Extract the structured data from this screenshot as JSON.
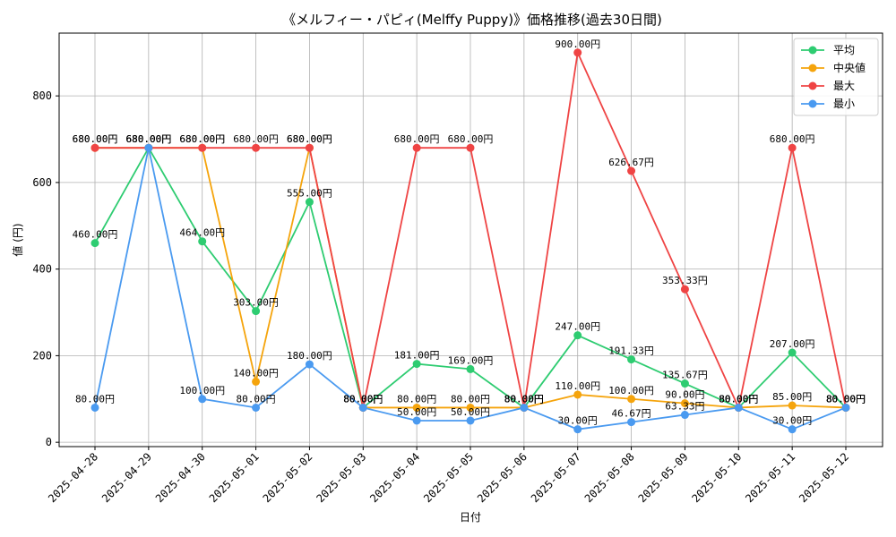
{
  "chart_data": {
    "type": "line",
    "title": "《メルフィー・パピィ(Melffy Puppy)》価格推移(過去30日間)",
    "xlabel": "日付",
    "ylabel": "値 (円)",
    "ylim": [
      -10,
      945
    ],
    "yticks": [
      0,
      200,
      400,
      600,
      800
    ],
    "grid": true,
    "legend_position": "top-right",
    "label_suffix": "円",
    "categories": [
      "2025-04-28",
      "2025-04-29",
      "2025-04-30",
      "2025-05-01",
      "2025-05-02",
      "2025-05-03",
      "2025-05-04",
      "2025-05-05",
      "2025-05-06",
      "2025-05-07",
      "2025-05-08",
      "2025-05-09",
      "2025-05-10",
      "2025-05-11",
      "2025-05-12"
    ],
    "series": [
      {
        "name": "平均",
        "color": "#2ecc71",
        "values": [
          460,
          680,
          464,
          303,
          555,
          80,
          181,
          169,
          80,
          247,
          191.33,
          135.67,
          80,
          207,
          80
        ]
      },
      {
        "name": "中央値",
        "color": "#f5a40c",
        "values": [
          680,
          680,
          680,
          140,
          680,
          80,
          80,
          80,
          80,
          110,
          100,
          90,
          80,
          85,
          80
        ]
      },
      {
        "name": "最大",
        "color": "#ef4444",
        "values": [
          680,
          680,
          680,
          680,
          680,
          80,
          680,
          680,
          80,
          900,
          626.67,
          353.33,
          80,
          680,
          80
        ]
      },
      {
        "name": "最小",
        "color": "#4a9af0",
        "values": [
          80,
          680,
          100,
          80,
          180,
          80,
          50,
          50,
          80,
          30,
          46.67,
          63.33,
          80,
          30,
          80
        ]
      }
    ]
  }
}
